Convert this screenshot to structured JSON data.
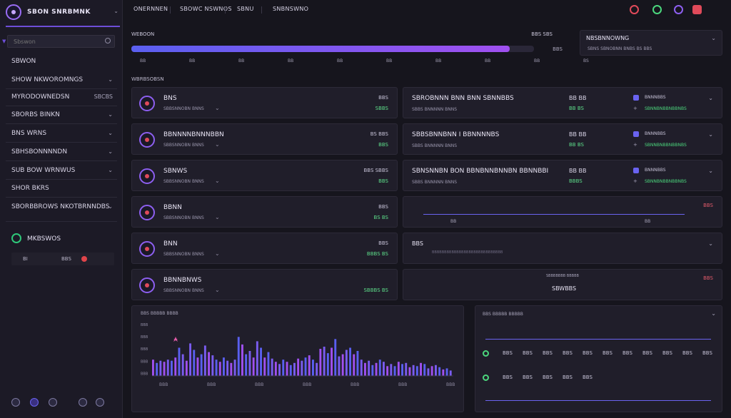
{
  "app": {
    "title": "SBON SNRBMNK"
  },
  "sidebar": {
    "search_placeholder": "Sbswon",
    "items": [
      {
        "label": "SBWON"
      },
      {
        "label": "SHOW NKWOROMNGS"
      },
      {
        "label": "MYRODOWNEDSN",
        "value": "SBCBS"
      },
      {
        "label": "SBORBS BINKN"
      },
      {
        "label": "BNS WRNS"
      },
      {
        "label": "SBHSBONNNNDN"
      },
      {
        "label": "SUB BOW WRNWUS"
      },
      {
        "label": "SHOR BKRS"
      },
      {
        "label": "SBORBBROWS NKOTBRNNDBS"
      }
    ],
    "network": {
      "title": "MKBSWOS",
      "stat_left": "BI",
      "stat_mid": "BBS"
    }
  },
  "topbar": {
    "tabs": [
      "ONERNNEN",
      "SBOWC NSWNOS",
      "SBNU",
      "SNBNSWNO"
    ]
  },
  "overview": {
    "title": "WEBOON",
    "right_label": "BBS SBS",
    "end_label": "BBS",
    "progress": 0.94,
    "ticks": [
      "BB",
      "BB",
      "BB",
      "BB",
      "BB",
      "BB",
      "BB",
      "BB",
      "BB",
      "BS"
    ]
  },
  "notification": {
    "title": "NBSBNNOWNG",
    "sub": "SBNS SBNOBNN BNBS BS BBS"
  },
  "section_label": "WBRBSOBSN",
  "cards": [
    {
      "name": "BNS",
      "sub": "SBBSNNOBN BNNS",
      "v1": "BBS",
      "v2": "SBBS"
    },
    {
      "name": "BBNNNNBNNNBBN",
      "sub": "SBBSNNOBN BNNS",
      "v1": "BS BBS",
      "v2": "BBS"
    },
    {
      "name": "SBNWS",
      "sub": "SBBSNNOBN BNNS",
      "v1": "BBS SBBS",
      "v2": "BBS"
    },
    {
      "name": "BBNN",
      "sub": "SBBSNNOBN BNNS",
      "v1": "BBS",
      "v2": "BS BS"
    },
    {
      "name": "BNN",
      "sub": "SBBSNNOBN BNNS",
      "v1": "BBS",
      "v2": "BBBS BS"
    },
    {
      "name": "BBNNBNWS",
      "sub": "SBBSNNOBN BNNS",
      "v1": "",
      "v2": "SBBBS BS"
    }
  ],
  "right_cards": [
    {
      "name": "SBROBNNN BNN BNN SBNNBBS",
      "sub": "SBBS BNNNNN BNNS",
      "mid1": "BB BB",
      "mid2": "BB BS",
      "lbl": "BNNNBBS",
      "green": "SBNNBNBBNBBNBS"
    },
    {
      "name": "SBBSBNNBNN I BBNNNNBS",
      "sub": "SBBS BNNNNN BNNS",
      "mid1": "BB BB",
      "mid2": "BB BS",
      "lbl": "BNNNBBS",
      "green": "SBNNBNBBNBBNBS"
    },
    {
      "name": "SBNSNNBN BON BBNBNNBNNBN BBNNBBI",
      "sub": "SBBS BNNNNN BNNS",
      "mid1": "BB BB",
      "mid2": "BBBS",
      "lbl": "BNNNBBS",
      "green": "SBNNBNBBNBBNBS"
    }
  ],
  "mini_chart": {
    "ticks": [
      "BB",
      "BB"
    ],
    "value": "BBS"
  },
  "side_panel": {
    "title": "BBS",
    "sub": "BBBBBBBBBBBBBBBBBBBBBBBBBBBBB"
  },
  "big_panel": {
    "title": "SBBBBBBB BBBBB",
    "main": "SBWBBS"
  },
  "legend": {
    "title": "BBS BBBBB BBBBB",
    "items": [
      "BBS",
      "BBS",
      "BBS",
      "BBS",
      "BBS",
      "BBS",
      "BBS",
      "BBS",
      "BBS",
      "BBS",
      "BBS"
    ]
  },
  "colors": {
    "accent": "#8d5ff0",
    "progress_start": "#5a5ff0",
    "progress_end": "#a050f0",
    "green": "#4bd77d",
    "red": "#e04a5a",
    "bar_purple": "#a050f0",
    "bar_blue": "#5a5ff0"
  },
  "chart_data": {
    "type": "bar",
    "title": "BBS BBBBB BBBB",
    "xlabel": "",
    "ylabel": "",
    "y_ticks": [
      "BBB",
      "BBB",
      "BBB",
      "BBB",
      "BBB"
    ],
    "x_ticks": [
      "BBB",
      "BBB",
      "BBB",
      "BBB",
      "BBB",
      "BBB",
      "BBB"
    ],
    "ylim": [
      0,
      100
    ],
    "values": [
      30,
      24,
      28,
      26,
      30,
      28,
      34,
      52,
      40,
      28,
      60,
      48,
      34,
      40,
      56,
      44,
      38,
      30,
      26,
      34,
      28,
      24,
      30,
      72,
      58,
      40,
      46,
      34,
      64,
      52,
      34,
      44,
      32,
      26,
      22,
      30,
      26,
      20,
      24,
      32,
      28,
      34,
      38,
      30,
      24,
      50,
      54,
      42,
      52,
      68,
      36,
      40,
      48,
      52,
      40,
      46,
      30,
      24,
      28,
      20,
      24,
      30,
      26,
      18,
      22,
      18,
      26,
      22,
      24,
      16,
      20,
      18,
      24,
      22,
      14,
      18,
      20,
      16,
      12,
      14,
      10
    ]
  }
}
